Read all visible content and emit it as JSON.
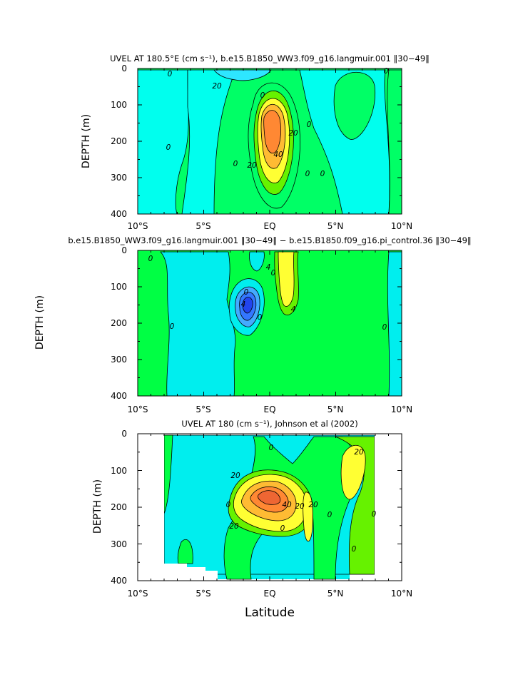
{
  "figure": {
    "xlabel": "Latitude"
  },
  "chart_data": [
    {
      "type": "heatmap",
      "title": "UVEL AT 180.5°E (cm s⁻¹), b.e15.B1850_WW3.f09_g16.langmuir.001 ‖30−49‖",
      "xlabel": "",
      "ylabel": "DEPTH (m)",
      "xlim": [
        -10,
        10
      ],
      "ylim": [
        400,
        0
      ],
      "x_ticks": [
        "10°S",
        "5°S",
        "EQ",
        "5°N",
        "10°N"
      ],
      "y_ticks": [
        "0",
        "100",
        "200",
        "300",
        "400"
      ],
      "contour_labels": [
        "0",
        "20",
        "0",
        "0",
        "20",
        "40",
        "20",
        "0",
        "0",
        "0",
        "0",
        "0"
      ],
      "colors": {
        "neg": "#2ee6ff",
        "zero": "#00ffee",
        "pos1": "#00ff66",
        "pos2": "#66f200",
        "pos3": "#ffff33",
        "pos4": "#ffbb33",
        "core": "#ff8833"
      }
    },
    {
      "type": "heatmap",
      "title": "b.e15.B1850_WW3.f09_g16.langmuir.001 ‖30−49‖ − b.e15.B1850.f09_g16.pi_control.36 ‖30−49‖",
      "xlabel": "",
      "ylabel": "DEPTH (m)",
      "xlim": [
        -10,
        10
      ],
      "ylim": [
        400,
        0
      ],
      "x_ticks": [
        "10°S",
        "5°S",
        "EQ",
        "5°N",
        "10°N"
      ],
      "y_ticks": [
        "0",
        "100",
        "200",
        "300",
        "400"
      ],
      "contour_labels": [
        "0",
        "0",
        "0",
        "4",
        "4",
        "0",
        "4",
        "0",
        "0"
      ],
      "colors": {
        "neg": "#00eeee",
        "pos": "#00ff44",
        "blue": "#2266ff",
        "yellow": "#ffff33"
      }
    },
    {
      "type": "heatmap",
      "title": "UVEL AT 180 (cm s⁻¹), Johnson et al (2002)",
      "xlabel": "",
      "ylabel": "DEPTH (m)",
      "xlim": [
        -10,
        10
      ],
      "ylim": [
        400,
        0
      ],
      "x_ticks": [
        "10°S",
        "5°S",
        "EQ",
        "5°N",
        "10°N"
      ],
      "y_ticks": [
        "0",
        "100",
        "200",
        "300",
        "400"
      ],
      "contour_labels": [
        "20",
        "0",
        "0",
        "40",
        "20",
        "20",
        "20",
        "0",
        "0",
        "20",
        "0",
        "0"
      ],
      "colors": {
        "neg": "#00eeee",
        "pos1": "#00ff44",
        "pos2": "#66f200",
        "pos3": "#ffff33",
        "pos4": "#ffbb33",
        "core": "#ff8833"
      }
    }
  ]
}
